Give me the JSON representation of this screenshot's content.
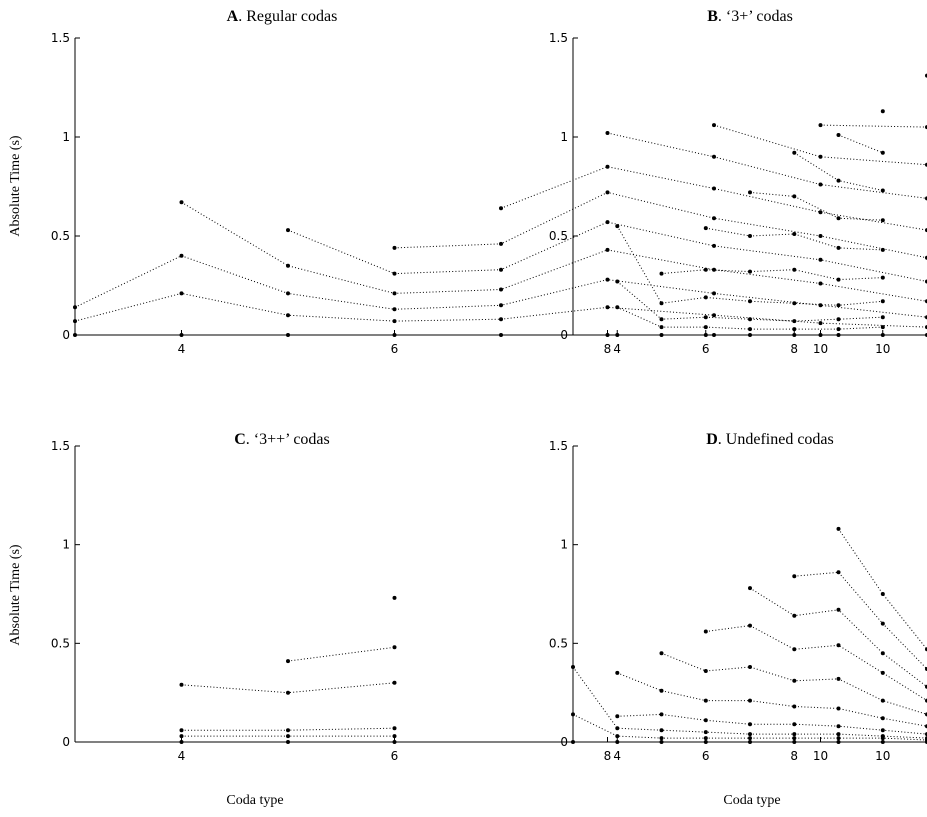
{
  "chart_data": [
    {
      "type": "line",
      "letter": "A",
      "title": "Regular codas",
      "xlabel": "",
      "ylabel": "Absolute Time (s)",
      "xlim": [
        3,
        11
      ],
      "ylim": [
        0,
        1.5
      ],
      "xticks": [
        4,
        6,
        8,
        10
      ],
      "yticks": [
        0,
        0.5,
        1,
        1.5
      ],
      "series": [
        {
          "x": [
            3,
            4,
            5,
            6,
            7,
            8,
            9,
            10,
            11
          ],
          "values": [
            0,
            0,
            0,
            0,
            0,
            0,
            0,
            0,
            0
          ]
        },
        {
          "x": [
            3,
            4,
            5,
            6,
            7,
            8,
            9,
            10,
            11
          ],
          "values": [
            0.07,
            0.21,
            0.1,
            0.07,
            0.08,
            0.14,
            0.1,
            0.06,
            0.04
          ]
        },
        {
          "x": [
            3,
            4,
            5,
            6,
            7,
            8,
            9,
            10,
            11
          ],
          "values": [
            0.14,
            0.4,
            0.21,
            0.13,
            0.15,
            0.28,
            0.21,
            0.15,
            0.09
          ]
        },
        {
          "x": [
            4,
            5,
            6,
            7,
            8,
            9,
            10,
            11
          ],
          "values": [
            0.67,
            0.35,
            0.21,
            0.23,
            0.43,
            0.33,
            0.26,
            0.17
          ]
        },
        {
          "x": [
            5,
            6,
            7,
            8,
            9,
            10,
            11
          ],
          "values": [
            0.53,
            0.31,
            0.33,
            0.57,
            0.45,
            0.38,
            0.27
          ]
        },
        {
          "x": [
            6,
            7,
            8,
            9,
            10,
            11
          ],
          "values": [
            0.44,
            0.46,
            0.72,
            0.59,
            0.5,
            0.39
          ]
        },
        {
          "x": [
            7,
            8,
            9,
            10,
            11
          ],
          "values": [
            0.64,
            0.85,
            0.74,
            0.62,
            0.53
          ]
        },
        {
          "x": [
            8,
            9,
            10,
            11
          ],
          "values": [
            1.02,
            0.9,
            0.76,
            0.69
          ]
        },
        {
          "x": [
            9,
            10,
            11
          ],
          "values": [
            1.06,
            0.9,
            0.86
          ]
        },
        {
          "x": [
            10,
            11
          ],
          "values": [
            1.06,
            1.05
          ]
        },
        {
          "x": [
            11
          ],
          "values": [
            1.31
          ]
        }
      ]
    },
    {
      "type": "line",
      "letter": "B",
      "title": "‘3+’ codas",
      "xlabel": "",
      "ylabel": "",
      "xlim": [
        3,
        11
      ],
      "ylim": [
        0,
        1.5
      ],
      "xticks": [
        4,
        6,
        8,
        10
      ],
      "yticks": [
        0,
        0.5,
        1,
        1.5
      ],
      "series": [
        {
          "x": [
            4,
            5,
            6,
            7,
            8,
            9,
            10
          ],
          "values": [
            0,
            0,
            0,
            0,
            0,
            0,
            0
          ]
        },
        {
          "x": [
            4,
            5,
            6,
            7,
            8,
            9,
            10
          ],
          "values": [
            0.14,
            0.04,
            0.04,
            0.03,
            0.03,
            0.03,
            0.04
          ]
        },
        {
          "x": [
            4,
            5,
            6,
            7,
            8,
            9,
            10
          ],
          "values": [
            0.27,
            0.08,
            0.09,
            0.08,
            0.07,
            0.08,
            0.09
          ]
        },
        {
          "x": [
            4,
            5,
            6,
            7,
            8,
            9,
            10
          ],
          "values": [
            0.55,
            0.16,
            0.19,
            0.17,
            0.16,
            0.15,
            0.17
          ]
        },
        {
          "x": [
            5,
            6,
            7,
            8,
            9,
            10
          ],
          "values": [
            0.31,
            0.33,
            0.32,
            0.33,
            0.28,
            0.29
          ]
        },
        {
          "x": [
            6,
            7,
            8,
            9,
            10
          ],
          "values": [
            0.54,
            0.5,
            0.51,
            0.44,
            0.43
          ]
        },
        {
          "x": [
            7,
            8,
            9,
            10
          ],
          "values": [
            0.72,
            0.7,
            0.59,
            0.58
          ]
        },
        {
          "x": [
            8,
            9,
            10
          ],
          "values": [
            0.92,
            0.78,
            0.73
          ]
        },
        {
          "x": [
            9,
            10
          ],
          "values": [
            1.01,
            0.92
          ]
        },
        {
          "x": [
            10
          ],
          "values": [
            1.13
          ]
        }
      ]
    },
    {
      "type": "line",
      "letter": "C",
      "title": "‘3++’ codas",
      "xlabel": "Coda type",
      "ylabel": "Absolute Time (s)",
      "xlim": [
        3,
        11
      ],
      "ylim": [
        0,
        1.5
      ],
      "xticks": [
        4,
        6,
        8,
        10
      ],
      "yticks": [
        0,
        0.5,
        1,
        1.5
      ],
      "series": [
        {
          "x": [
            4,
            5,
            6
          ],
          "values": [
            0,
            0,
            0
          ]
        },
        {
          "x": [
            4,
            5,
            6
          ],
          "values": [
            0.03,
            0.03,
            0.03
          ]
        },
        {
          "x": [
            4,
            5,
            6
          ],
          "values": [
            0.06,
            0.06,
            0.07
          ]
        },
        {
          "x": [
            4,
            5,
            6
          ],
          "values": [
            0.29,
            0.25,
            0.3
          ]
        },
        {
          "x": [
            5,
            6
          ],
          "values": [
            0.41,
            0.48
          ]
        },
        {
          "x": [
            6
          ],
          "values": [
            0.73
          ]
        }
      ]
    },
    {
      "type": "line",
      "letter": "D",
      "title": "Undefined codas",
      "xlabel": "Coda type",
      "ylabel": "",
      "xlim": [
        3,
        11
      ],
      "ylim": [
        0,
        1.5
      ],
      "xticks": [
        4,
        6,
        8,
        10
      ],
      "yticks": [
        0,
        0.5,
        1,
        1.5
      ],
      "series": [
        {
          "x": [
            3,
            4,
            5,
            6,
            7,
            8,
            9,
            10,
            11
          ],
          "values": [
            0,
            0,
            0,
            0,
            0,
            0,
            0,
            0,
            0
          ]
        },
        {
          "x": [
            3,
            4,
            5,
            6,
            7,
            8,
            9,
            10,
            11
          ],
          "values": [
            0.14,
            0.03,
            0.02,
            0.02,
            0.02,
            0.02,
            0.02,
            0.02,
            0.01
          ]
        },
        {
          "x": [
            3,
            4,
            5,
            6,
            7,
            8,
            9,
            10,
            11
          ],
          "values": [
            0.38,
            0.07,
            0.06,
            0.05,
            0.04,
            0.04,
            0.04,
            0.03,
            0.02
          ]
        },
        {
          "x": [
            4,
            5,
            6,
            7,
            8,
            9,
            10,
            11
          ],
          "values": [
            0.13,
            0.14,
            0.11,
            0.09,
            0.09,
            0.08,
            0.06,
            0.04
          ]
        },
        {
          "x": [
            4,
            5,
            6,
            7,
            8,
            9,
            10,
            11
          ],
          "values": [
            0.35,
            0.26,
            0.21,
            0.21,
            0.18,
            0.17,
            0.12,
            0.08
          ]
        },
        {
          "x": [
            5,
            6,
            7,
            8,
            9,
            10,
            11
          ],
          "values": [
            0.45,
            0.36,
            0.38,
            0.31,
            0.32,
            0.21,
            0.14
          ]
        },
        {
          "x": [
            6,
            7,
            8,
            9,
            10,
            11
          ],
          "values": [
            0.56,
            0.59,
            0.47,
            0.49,
            0.35,
            0.21
          ]
        },
        {
          "x": [
            7,
            8,
            9,
            10,
            11
          ],
          "values": [
            0.78,
            0.64,
            0.67,
            0.45,
            0.28
          ]
        },
        {
          "x": [
            8,
            9,
            10,
            11
          ],
          "values": [
            0.84,
            0.86,
            0.6,
            0.37
          ]
        },
        {
          "x": [
            9,
            10,
            11
          ],
          "values": [
            1.08,
            0.75,
            0.47
          ]
        }
      ]
    }
  ]
}
